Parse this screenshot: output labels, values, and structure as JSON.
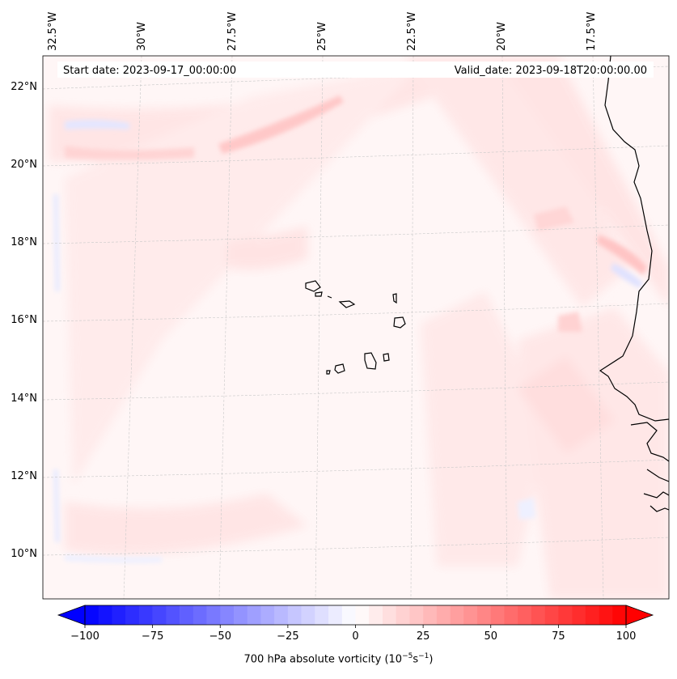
{
  "map": {
    "start_date": "Start date: 2023-09-17_00:00:00",
    "valid_date": "Valid_date: 2023-09-18T20:00:00.00",
    "lon_labels": [
      "32.5°W",
      "30°W",
      "27.5°W",
      "25°W",
      "22.5°W",
      "20°W",
      "17.5°W"
    ],
    "lat_labels": [
      "22°N",
      "20°N",
      "18°N",
      "16°N",
      "14°N",
      "12°N",
      "10°N"
    ],
    "field_variable": "700 hPa absolute vorticity",
    "gridlines": true,
    "colormap": "bwr",
    "colors": {
      "negative": "#0000ff",
      "neutral": "#ffffff",
      "positive": "#ff0000",
      "coast": "#000000",
      "grid": "#c8c8c8"
    }
  },
  "colorbar": {
    "ticks": [
      "−100",
      "−75",
      "−50",
      "−25",
      "0",
      "25",
      "50",
      "75",
      "100"
    ],
    "range": [
      -100,
      100
    ],
    "step": 5,
    "label_main": "700 hPa absolute vorticity (10",
    "label_exp1": "−5",
    "label_mid": "s",
    "label_exp2": "−1",
    "label_end": ")"
  }
}
